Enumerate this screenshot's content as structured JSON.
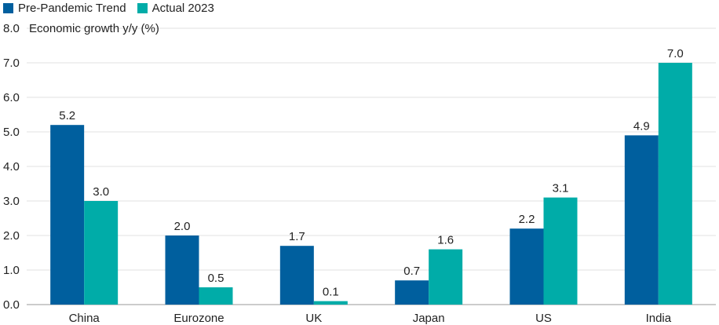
{
  "chart_data": {
    "type": "bar",
    "title": "",
    "ylabel": "Economic growth y/y (%)",
    "xlabel": "",
    "ylim": [
      0,
      8
    ],
    "yticks": [
      "0.0",
      "1.0",
      "2.0",
      "3.0",
      "4.0",
      "5.0",
      "6.0",
      "7.0",
      "8.0"
    ],
    "categories": [
      "China",
      "Eurozone",
      "UK",
      "Japan",
      "US",
      "India"
    ],
    "series": [
      {
        "name": "Pre-Pandemic Trend",
        "color": "#005f9e",
        "values": [
          5.2,
          2.0,
          1.7,
          0.7,
          2.2,
          4.9
        ],
        "labels": [
          "5.2",
          "2.0",
          "1.7",
          "0.7",
          "2.2",
          "4.9"
        ]
      },
      {
        "name": "Actual 2023",
        "color": "#00aca8",
        "values": [
          3.0,
          0.5,
          0.1,
          1.6,
          3.1,
          7.0
        ],
        "labels": [
          "3.0",
          "0.5",
          "0.1",
          "1.6",
          "3.1",
          "7.0"
        ]
      }
    ],
    "legend_position": "top-left",
    "grid": true
  }
}
